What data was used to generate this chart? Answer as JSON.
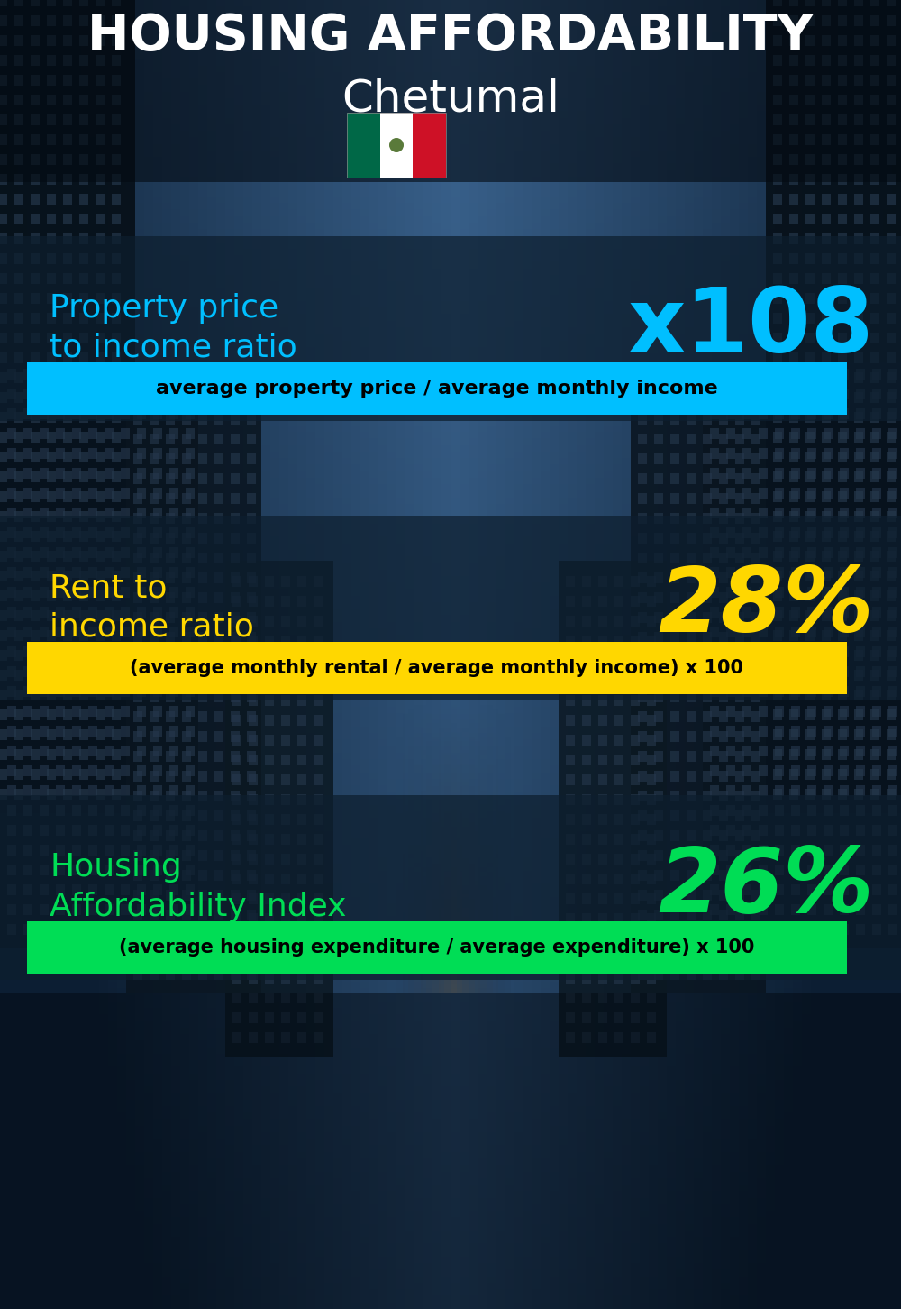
{
  "title_line1": "HOUSING AFFORDABILITY",
  "title_line2": "Chetumal",
  "bg_color": "#060e18",
  "section1_label": "Property price\nto income ratio",
  "section1_value": "x108",
  "section1_label_color": "#00bfff",
  "section1_value_color": "#00bfff",
  "section1_formula": "average property price / average monthly income",
  "section1_formula_bg": "#00bfff",
  "section2_label": "Rent to\nincome ratio",
  "section2_value": "28%",
  "section2_label_color": "#ffd700",
  "section2_value_color": "#ffd700",
  "section2_formula": "(average monthly rental / average monthly income) x 100",
  "section2_formula_bg": "#ffd700",
  "section3_label": "Housing\nAffordability Index",
  "section3_value": "26%",
  "section3_label_color": "#00dd55",
  "section3_value_color": "#00dd55",
  "section3_formula": "(average housing expenditure / average expenditure) x 100",
  "section3_formula_bg": "#00dd55",
  "title_color": "#ffffff",
  "subtitle_color": "#ffffff",
  "formula_text_color": "#000000",
  "flag_green": "#006847",
  "flag_white": "#ffffff",
  "flag_red": "#ce1126",
  "panel_color": "#0d1e2e",
  "panel_alpha": 0.72
}
